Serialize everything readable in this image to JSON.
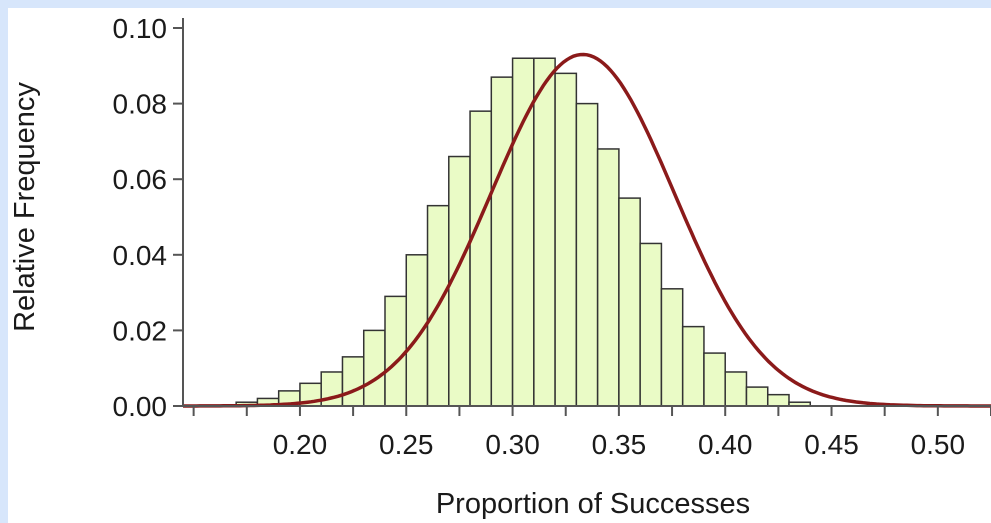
{
  "chart_data": {
    "type": "bar",
    "xlabel": "Proportion of Successes",
    "ylabel": "Relative Frequency",
    "xlim": [
      0.145,
      0.525
    ],
    "ylim": [
      0,
      0.1
    ],
    "x_ticks": [
      "0.20",
      "0.25",
      "0.30",
      "0.35",
      "0.40",
      "0.45",
      "0.50"
    ],
    "y_ticks": [
      "0.00",
      "0.02",
      "0.04",
      "0.06",
      "0.08",
      "0.10"
    ],
    "bin_width": 0.01,
    "bins": [
      {
        "x": 0.175,
        "y": 0.001
      },
      {
        "x": 0.185,
        "y": 0.002
      },
      {
        "x": 0.195,
        "y": 0.004
      },
      {
        "x": 0.205,
        "y": 0.006
      },
      {
        "x": 0.215,
        "y": 0.009
      },
      {
        "x": 0.225,
        "y": 0.013
      },
      {
        "x": 0.235,
        "y": 0.02
      },
      {
        "x": 0.245,
        "y": 0.029
      },
      {
        "x": 0.255,
        "y": 0.04
      },
      {
        "x": 0.265,
        "y": 0.053
      },
      {
        "x": 0.275,
        "y": 0.066
      },
      {
        "x": 0.285,
        "y": 0.078
      },
      {
        "x": 0.295,
        "y": 0.087
      },
      {
        "x": 0.305,
        "y": 0.092
      },
      {
        "x": 0.315,
        "y": 0.092
      },
      {
        "x": 0.325,
        "y": 0.088
      },
      {
        "x": 0.335,
        "y": 0.08
      },
      {
        "x": 0.345,
        "y": 0.068
      },
      {
        "x": 0.355,
        "y": 0.055
      },
      {
        "x": 0.365,
        "y": 0.043
      },
      {
        "x": 0.375,
        "y": 0.031
      },
      {
        "x": 0.385,
        "y": 0.021
      },
      {
        "x": 0.395,
        "y": 0.014
      },
      {
        "x": 0.405,
        "y": 0.009
      },
      {
        "x": 0.415,
        "y": 0.005
      },
      {
        "x": 0.425,
        "y": 0.003
      },
      {
        "x": 0.435,
        "y": 0.001
      }
    ],
    "curve": {
      "type": "normal",
      "mean": 0.333,
      "sd": 0.043,
      "peak": 0.093,
      "x_range": [
        0.145,
        0.525
      ]
    },
    "colors": {
      "bar_fill": "#eafbc6",
      "bar_stroke": "#333333",
      "curve": "#8b1a1a",
      "axis": "#555555",
      "background": "#d7e6fb"
    }
  }
}
